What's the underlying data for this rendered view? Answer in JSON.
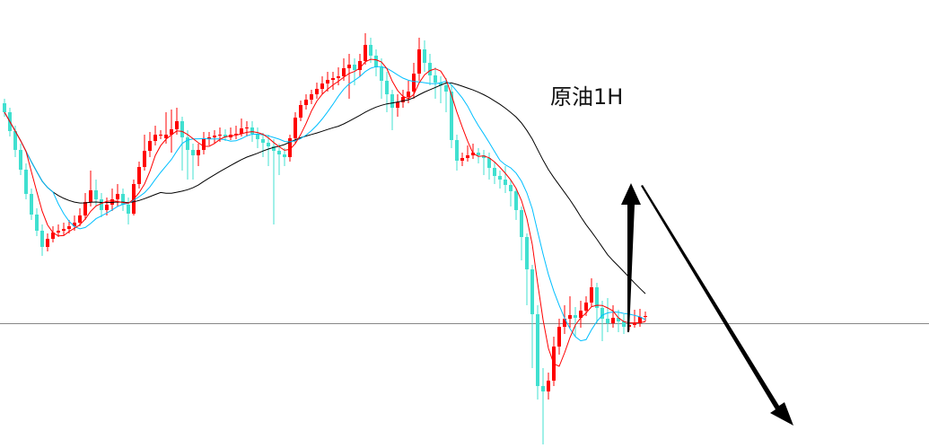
{
  "chart_data": {
    "type": "candlestick",
    "title": "原油1H",
    "xlabel": "",
    "ylabel": "",
    "ylim": [
      0,
      50
    ],
    "grid": false,
    "reference_line": 14.0,
    "candles": [
      [
        38.5,
        39.0,
        37.0,
        37.5
      ],
      [
        37.5,
        38.0,
        34.8,
        35.4
      ],
      [
        35.4,
        36.0,
        32.5,
        33.3
      ],
      [
        33.3,
        34.0,
        30.5,
        31.1
      ],
      [
        31.1,
        31.8,
        27.8,
        28.4
      ],
      [
        28.4,
        29.0,
        25.5,
        26.1
      ],
      [
        26.1,
        26.8,
        23.7,
        24.3
      ],
      [
        24.3,
        25.0,
        21.5,
        22.5
      ],
      [
        22.5,
        24.0,
        22.0,
        23.4
      ],
      [
        23.4,
        24.8,
        23.0,
        24.1
      ],
      [
        24.1,
        25.0,
        23.6,
        24.3
      ],
      [
        24.3,
        25.2,
        23.8,
        24.5
      ],
      [
        24.5,
        25.5,
        24.0,
        24.8
      ],
      [
        24.8,
        26.0,
        24.3,
        25.2
      ],
      [
        25.2,
        26.8,
        24.8,
        26.0
      ],
      [
        26.0,
        28.5,
        25.5,
        27.5
      ],
      [
        27.5,
        31.0,
        27.0,
        28.8
      ],
      [
        28.8,
        30.0,
        27.0,
        27.8
      ],
      [
        27.8,
        28.5,
        25.8,
        26.6
      ],
      [
        26.6,
        28.0,
        26.0,
        27.2
      ],
      [
        27.2,
        29.0,
        26.5,
        27.8
      ],
      [
        27.8,
        29.5,
        27.0,
        28.4
      ],
      [
        28.4,
        29.0,
        26.5,
        27.2
      ],
      [
        27.2,
        28.0,
        25.0,
        26.2
      ],
      [
        26.2,
        30.0,
        26.0,
        29.5
      ],
      [
        29.5,
        32.0,
        29.0,
        31.4
      ],
      [
        31.4,
        35.0,
        31.0,
        33.2
      ],
      [
        33.2,
        35.3,
        32.5,
        34.3
      ],
      [
        34.3,
        36.0,
        33.8,
        35.0
      ],
      [
        35.0,
        35.5,
        34.5,
        35.0
      ],
      [
        34.6,
        37.5,
        34.0,
        35.0
      ],
      [
        35.0,
        37.8,
        33.0,
        35.6
      ],
      [
        35.6,
        38.0,
        35.0,
        36.5
      ],
      [
        36.5,
        37.0,
        31.0,
        34.7
      ],
      [
        34.7,
        35.5,
        30.0,
        33.3
      ],
      [
        33.3,
        34.0,
        30.0,
        32.7
      ],
      [
        32.7,
        34.0,
        31.5,
        33.3
      ],
      [
        33.3,
        35.3,
        32.8,
        34.5
      ],
      [
        34.5,
        35.3,
        33.8,
        34.7
      ],
      [
        34.7,
        35.5,
        34.0,
        34.9
      ],
      [
        34.9,
        35.8,
        34.2,
        35.0
      ],
      [
        35.0,
        35.6,
        34.3,
        34.7
      ],
      [
        34.7,
        35.8,
        34.4,
        35.0
      ],
      [
        35.0,
        36.0,
        34.5,
        35.1
      ],
      [
        35.1,
        36.8,
        34.8,
        35.7
      ],
      [
        35.7,
        36.5,
        34.8,
        35.8
      ],
      [
        35.8,
        36.5,
        34.2,
        35.1
      ],
      [
        35.1,
        35.8,
        33.5,
        34.5
      ],
      [
        34.5,
        35.2,
        32.5,
        34.1
      ],
      [
        34.1,
        35.0,
        31.5,
        33.7
      ],
      [
        33.7,
        34.5,
        25.0,
        33.2
      ],
      [
        33.2,
        34.0,
        30.5,
        32.8
      ],
      [
        32.8,
        33.5,
        31.5,
        32.5
      ],
      [
        32.5,
        35.0,
        32.0,
        34.6
      ],
      [
        34.6,
        37.5,
        34.0,
        36.9
      ],
      [
        36.9,
        38.8,
        36.5,
        38.3
      ],
      [
        38.3,
        39.5,
        37.8,
        38.9
      ],
      [
        38.9,
        40.0,
        38.4,
        39.5
      ],
      [
        39.5,
        40.8,
        39.0,
        40.1
      ],
      [
        40.1,
        41.5,
        39.5,
        40.7
      ],
      [
        40.7,
        42.0,
        39.8,
        41.1
      ],
      [
        41.1,
        42.0,
        40.0,
        41.3
      ],
      [
        41.3,
        42.5,
        40.5,
        41.5
      ],
      [
        41.5,
        43.5,
        41.0,
        42.4
      ],
      [
        42.4,
        44.0,
        39.0,
        42.8
      ],
      [
        42.8,
        43.5,
        40.5,
        42.2
      ],
      [
        42.2,
        44.0,
        41.5,
        43.2
      ],
      [
        43.2,
        46.3,
        42.8,
        45.0
      ],
      [
        45.0,
        45.8,
        43.0,
        43.8
      ],
      [
        43.8,
        44.5,
        41.5,
        42.5
      ],
      [
        42.5,
        43.5,
        39.0,
        41.0
      ],
      [
        41.0,
        42.0,
        37.5,
        39.5
      ],
      [
        39.5,
        40.0,
        35.5,
        38.0
      ],
      [
        38.0,
        39.5,
        37.0,
        38.6
      ],
      [
        38.6,
        40.0,
        38.0,
        39.2
      ],
      [
        39.2,
        41.0,
        38.5,
        39.8
      ],
      [
        39.8,
        43.0,
        39.0,
        41.8
      ],
      [
        41.8,
        45.8,
        41.0,
        44.5
      ],
      [
        44.5,
        45.5,
        42.0,
        43.0
      ],
      [
        43.0,
        44.0,
        40.5,
        41.6
      ],
      [
        41.6,
        42.5,
        39.0,
        40.8
      ],
      [
        40.8,
        41.5,
        38.5,
        40.5
      ],
      [
        40.5,
        41.3,
        37.5,
        39.8
      ],
      [
        39.8,
        40.5,
        33.5,
        34.4
      ],
      [
        34.4,
        35.0,
        31.0,
        32.1
      ],
      [
        32.1,
        33.0,
        31.5,
        32.4
      ],
      [
        32.4,
        33.8,
        32.0,
        32.7
      ],
      [
        32.7,
        34.0,
        32.3,
        33.0
      ],
      [
        33.0,
        33.5,
        31.8,
        32.7
      ],
      [
        32.7,
        33.3,
        30.5,
        32.4
      ],
      [
        32.4,
        33.0,
        30.0,
        31.3
      ],
      [
        31.3,
        32.0,
        29.5,
        30.4
      ],
      [
        30.4,
        31.0,
        29.0,
        30.0
      ],
      [
        30.0,
        31.5,
        28.5,
        29.4
      ],
      [
        29.4,
        30.0,
        27.0,
        28.7
      ],
      [
        28.7,
        29.0,
        25.5,
        26.6
      ],
      [
        26.6,
        27.0,
        21.0,
        23.6
      ],
      [
        23.6,
        24.0,
        16.0,
        20.0
      ],
      [
        20.0,
        20.5,
        9.0,
        15.0
      ],
      [
        15.0,
        16.0,
        5.5,
        7.0
      ],
      [
        7.0,
        9.0,
        0.5,
        6.4
      ],
      [
        6.4,
        8.5,
        5.5,
        7.6
      ],
      [
        7.6,
        12.5,
        7.0,
        11.4
      ],
      [
        11.4,
        14.5,
        10.5,
        13.6
      ],
      [
        13.6,
        16.0,
        12.8,
        14.5
      ],
      [
        14.5,
        17.0,
        13.5,
        14.9
      ],
      [
        14.9,
        15.8,
        12.5,
        14.6
      ],
      [
        14.6,
        16.5,
        13.5,
        15.4
      ],
      [
        15.4,
        17.0,
        14.8,
        16.3
      ],
      [
        16.3,
        19.0,
        15.8,
        18.0
      ],
      [
        18.0,
        18.5,
        14.0,
        15.7
      ],
      [
        15.7,
        16.5,
        12.0,
        14.5
      ],
      [
        14.5,
        16.8,
        13.0,
        14.0
      ],
      [
        14.0,
        16.0,
        13.5,
        14.6
      ],
      [
        14.6,
        15.5,
        13.0,
        14.2
      ],
      [
        14.2,
        15.0,
        12.8,
        13.6
      ],
      [
        13.6,
        14.8,
        13.2,
        13.8
      ],
      [
        13.8,
        15.5,
        13.5,
        14.0
      ],
      [
        14.0,
        15.6,
        13.6,
        14.7
      ],
      [
        14.7,
        15.3,
        14.2,
        14.8
      ]
    ],
    "colors": {
      "up": "#ff0000",
      "down": "#40e0d0",
      "ma_fast": "#ff0000",
      "ma_mid": "#00bfff",
      "ma_slow": "#000000",
      "reference_line": "#888888",
      "arrows": "#000000"
    },
    "annotations": [
      "up-arrow",
      "down-arrow"
    ]
  }
}
